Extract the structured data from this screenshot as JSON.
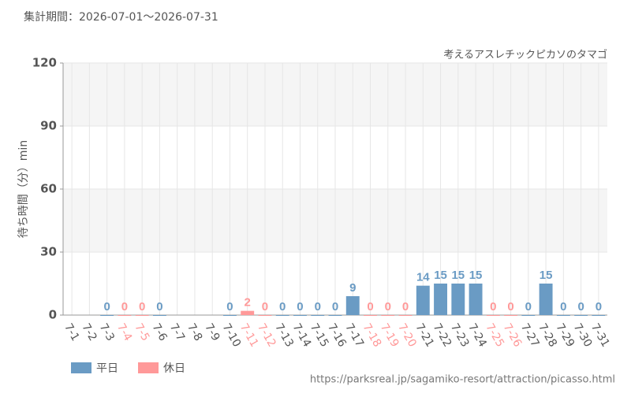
{
  "chart_data": {
    "type": "bar",
    "title": "集計期間：2026-07-01～2026-07-31",
    "subtitle": "考えるアスレチックピカソのタマゴ",
    "y_label": "待ち時間（分）min",
    "source": "https://parksreal.jp/sagamiko-resort/attraction/picasso.html",
    "categories": [
      "7-1",
      "7-2",
      "7-3",
      "7-4",
      "7-5",
      "7-6",
      "7-7",
      "7-8",
      "7-9",
      "7-10",
      "7-11",
      "7-12",
      "7-13",
      "7-14",
      "7-15",
      "7-16",
      "7-17",
      "7-18",
      "7-19",
      "7-20",
      "7-21",
      "7-22",
      "7-23",
      "7-24",
      "7-25",
      "7-26",
      "7-27",
      "7-28",
      "7-29",
      "7-30",
      "7-31"
    ],
    "series": [
      {
        "name": "平日",
        "color": "#6a9bc4",
        "values": [
          null,
          null,
          0,
          null,
          null,
          0,
          null,
          null,
          null,
          0,
          null,
          null,
          0,
          0,
          0,
          0,
          9,
          null,
          null,
          null,
          14,
          15,
          15,
          15,
          null,
          null,
          0,
          15,
          0,
          0,
          0
        ]
      },
      {
        "name": "休日",
        "color": "#ff9999",
        "values": [
          null,
          null,
          null,
          0,
          0,
          null,
          null,
          null,
          null,
          null,
          2,
          0,
          null,
          null,
          null,
          null,
          null,
          0,
          0,
          0,
          null,
          null,
          null,
          null,
          0,
          0,
          null,
          null,
          null,
          null,
          null
        ]
      }
    ],
    "ylim": [
      0,
      120
    ],
    "yticks": [
      0,
      30,
      60,
      90,
      120
    ],
    "grid": true
  }
}
